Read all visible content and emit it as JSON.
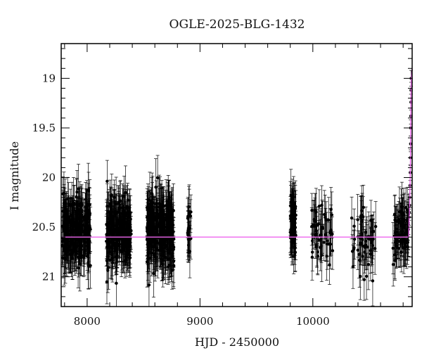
{
  "chart_data": {
    "type": "scatter",
    "title": "OGLE-2025-BLG-1432",
    "xlabel": "HJD - 2450000",
    "ylabel": "I magnitude",
    "xlim": [
      7770,
      10880
    ],
    "ylim": [
      21.3,
      18.65
    ],
    "y_inverted": true,
    "grid": false,
    "legend": "none",
    "x_ticks": [
      8000,
      9000,
      10000
    ],
    "y_ticks": [
      19,
      19.5,
      20,
      20.5,
      21
    ],
    "x_tick_labels": [
      "8000",
      "9000",
      "10000"
    ],
    "y_tick_labels": [
      "19",
      "19.5",
      "20",
      "20.5",
      "21"
    ],
    "baseline_mag": 20.6,
    "point_color": "#000000",
    "model_color": "#ee66ee",
    "observing_seasons": [
      {
        "start": 7780,
        "end": 8030,
        "n": 260,
        "mean": 20.52,
        "spread": 0.28,
        "err": 0.22
      },
      {
        "start": 8170,
        "end": 8390,
        "n": 240,
        "mean": 20.55,
        "spread": 0.28,
        "err": 0.22
      },
      {
        "start": 8530,
        "end": 8770,
        "n": 300,
        "mean": 20.52,
        "spread": 0.3,
        "err": 0.23
      },
      {
        "start": 8890,
        "end": 8920,
        "n": 22,
        "mean": 20.55,
        "spread": 0.22,
        "err": 0.22
      },
      {
        "start": 9800,
        "end": 9850,
        "n": 70,
        "mean": 20.45,
        "spread": 0.25,
        "err": 0.22
      },
      {
        "start": 9990,
        "end": 10180,
        "n": 55,
        "mean": 20.55,
        "spread": 0.25,
        "err": 0.22
      },
      {
        "start": 10340,
        "end": 10560,
        "n": 55,
        "mean": 20.65,
        "spread": 0.25,
        "err": 0.22
      },
      {
        "start": 10710,
        "end": 10850,
        "n": 80,
        "mean": 20.55,
        "spread": 0.25,
        "err": 0.22
      }
    ],
    "rise_points": [
      {
        "x": 10853,
        "y": 20.4
      },
      {
        "x": 10855,
        "y": 20.35
      },
      {
        "x": 10857,
        "y": 20.28
      },
      {
        "x": 10859,
        "y": 20.2
      },
      {
        "x": 10861,
        "y": 20.08
      },
      {
        "x": 10863,
        "y": 19.95
      },
      {
        "x": 10865,
        "y": 19.8
      },
      {
        "x": 10866,
        "y": 19.66
      },
      {
        "x": 10867,
        "y": 19.5
      },
      {
        "x": 10868,
        "y": 19.38
      },
      {
        "x": 10869,
        "y": 19.24
      },
      {
        "x": 10870,
        "y": 19.12
      },
      {
        "x": 10871,
        "y": 19.0
      }
    ]
  }
}
